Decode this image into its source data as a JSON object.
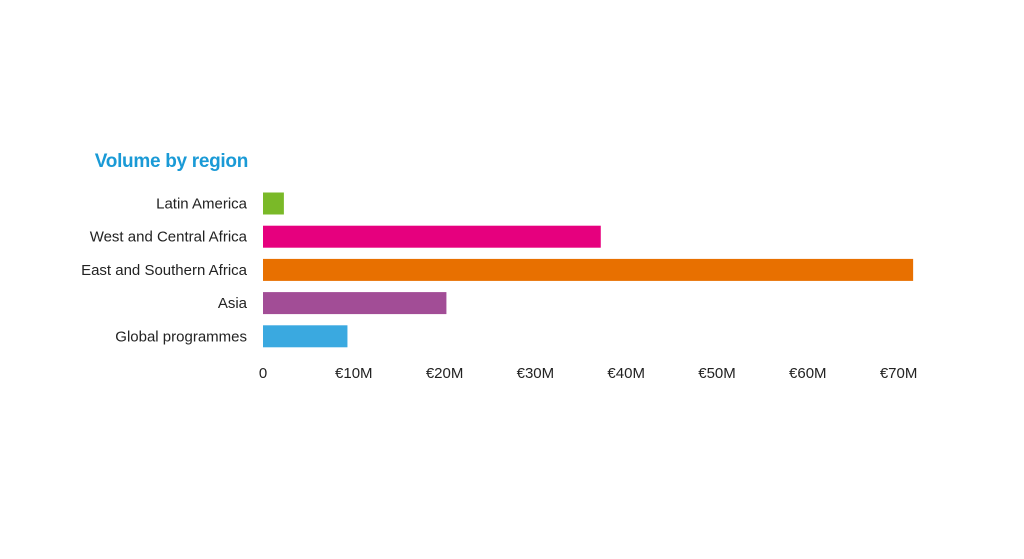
{
  "chart_data": {
    "type": "bar",
    "orientation": "horizontal",
    "title": "Volume by region",
    "categories": [
      "Latin America",
      "West and Central Africa",
      "East and Southern Africa",
      "Asia",
      "Global programmes"
    ],
    "values": [
      2.3,
      37.2,
      71.6,
      20.2,
      9.3
    ],
    "colors": [
      "#7ab928",
      "#e6007e",
      "#e87000",
      "#a24d96",
      "#3aa9e0"
    ],
    "unit": "€M",
    "xlim": [
      0,
      72
    ],
    "x_ticks": [
      0,
      10,
      20,
      30,
      40,
      50,
      60,
      70
    ],
    "x_tick_labels": [
      "0",
      "€10M",
      "€20M",
      "€30M",
      "€40M",
      "€50M",
      "€60M",
      "€70M"
    ],
    "xlabel": "",
    "ylabel": "",
    "grid": false,
    "legend": "none"
  },
  "colors": {
    "title": "#1a9ad6",
    "label": "#222222"
  }
}
